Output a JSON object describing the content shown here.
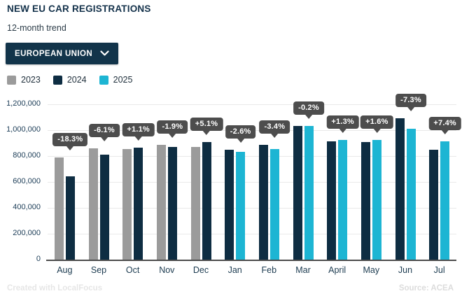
{
  "header": {
    "title": "NEW EU CAR REGISTRATIONS",
    "subtitle": "12-month trend"
  },
  "region_dropdown": {
    "selected_option": "EUROPEAN UNION",
    "icon": "chevron-down"
  },
  "footer": {
    "credit": "Created with LocalFocus",
    "source": "Source: ACEA"
  },
  "colors": {
    "accent_navy": "#12344a",
    "tooltip_bg": "#4d4d4d",
    "gridline": "#e9e9e9",
    "axis_line": "#4c4c4c"
  },
  "chart_data": {
    "type": "bar",
    "title": "NEW EU CAR REGISTRATIONS",
    "xlabel": "",
    "ylabel": "",
    "grid": true,
    "legend_position": "top-left",
    "ylim": [
      0,
      1200000
    ],
    "y_ticks": [
      "0",
      "200,000",
      "400,000",
      "600,000",
      "800,000",
      "1,000,000",
      "1,200,000"
    ],
    "categories": [
      "Aug",
      "Sep",
      "Oct",
      "Nov",
      "Dec",
      "Jan",
      "Feb",
      "Mar",
      "April",
      "May",
      "Jun",
      "Jul"
    ],
    "series": [
      {
        "name": "2023",
        "color": "#9b9b9b",
        "values": [
          790000,
          860000,
          855000,
          885000,
          870000,
          null,
          null,
          null,
          null,
          null,
          null,
          null
        ]
      },
      {
        "name": "2024",
        "color": "#0e2d42",
        "values": [
          645000,
          810000,
          865000,
          870000,
          910000,
          850000,
          885000,
          1030000,
          915000,
          910000,
          1090000,
          850000
        ]
      },
      {
        "name": "2025",
        "color": "#1db5d3",
        "values": [
          null,
          null,
          null,
          null,
          null,
          830000,
          855000,
          1030000,
          925000,
          925000,
          1010000,
          915000
        ]
      }
    ],
    "change_labels": [
      "-18.3%",
      "-6.1%",
      "+1.1%",
      "-1.9%",
      "+5.1%",
      "-2.6%",
      "-3.4%",
      "-0.2%",
      "+1.3%",
      "+1.6%",
      "-7.3%",
      "+7.4%"
    ]
  }
}
